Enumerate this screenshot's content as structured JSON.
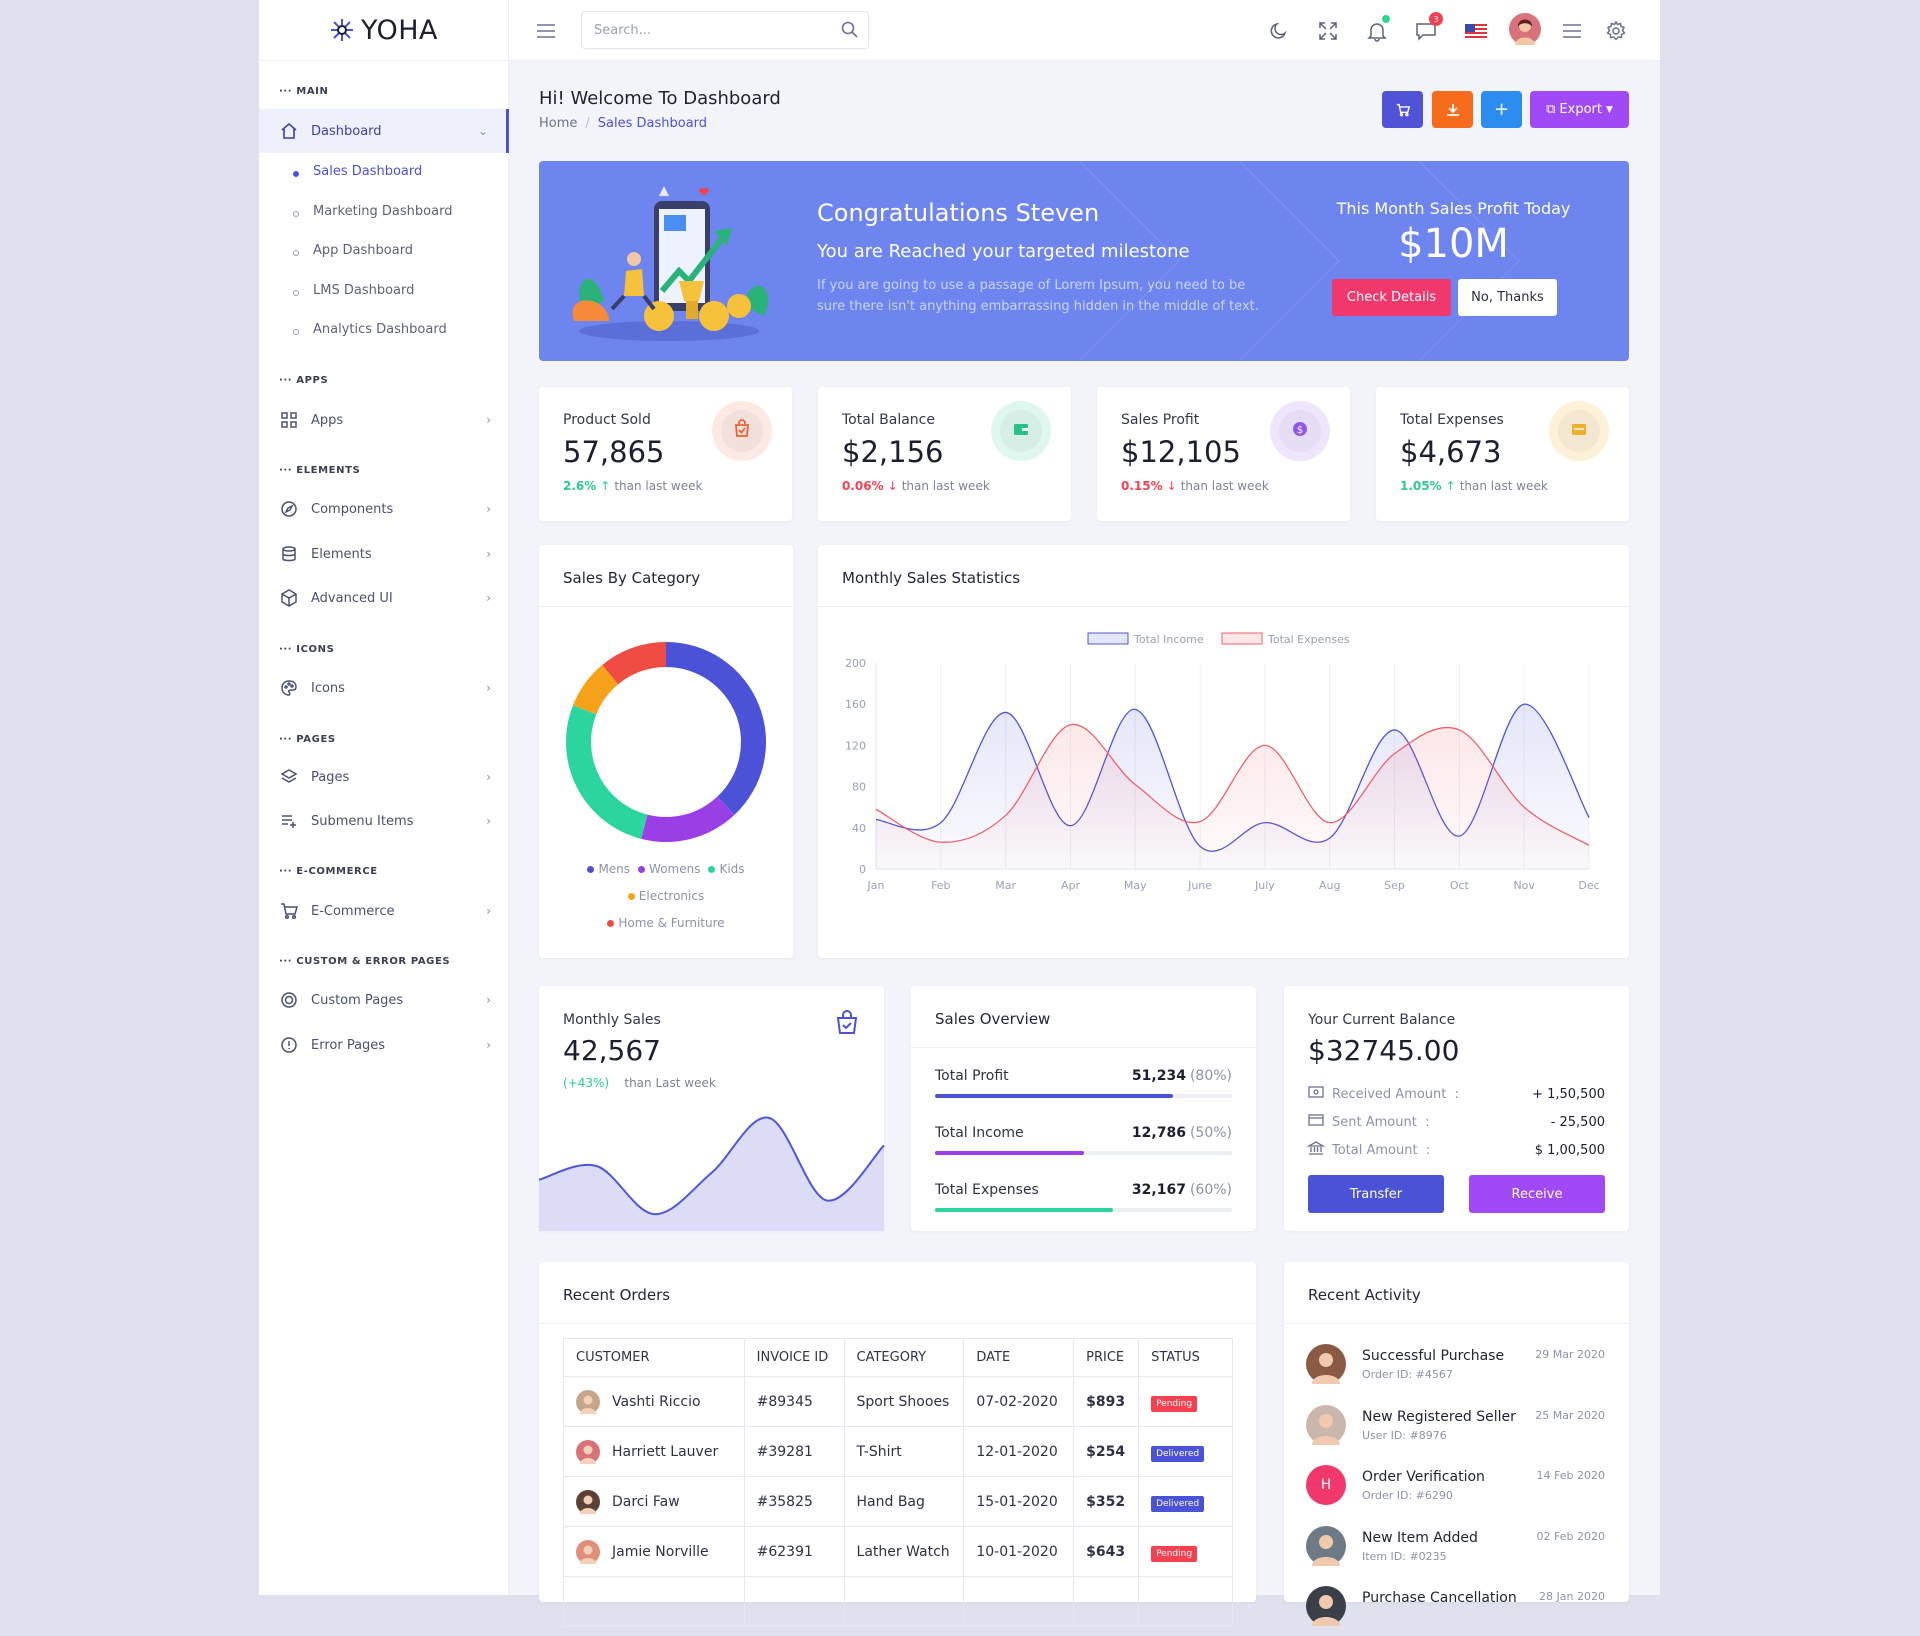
{
  "brand": {
    "name": "YOHA"
  },
  "sidebar": {
    "sections": [
      "MAIN",
      "APPS",
      "ELEMENTS",
      "ICONS",
      "PAGES",
      "E-COMMERCE",
      "CUSTOM & ERROR PAGES"
    ],
    "dashboard": "Dashboard",
    "sub_items": [
      "Sales Dashboard",
      "Marketing Dashboard",
      "App Dashboard",
      "LMS Dashboard",
      "Analytics Dashboard"
    ],
    "items": [
      "Apps",
      "Components",
      "Elements",
      "Advanced UI",
      "Icons",
      "Pages",
      "Submenu Items",
      "E-Commerce",
      "Custom Pages",
      "Error Pages"
    ]
  },
  "topbar": {
    "search_placeholder": "Search...",
    "message_badge": "3"
  },
  "header": {
    "title": "Hi! Welcome To Dashboard",
    "breadcrumb": [
      "Home",
      "Sales Dashboard"
    ],
    "export_label": "Export",
    "colors": {
      "cart": "#5053d6",
      "download": "#f76b1c",
      "add": "#2d8cf0",
      "export": "#a049f5"
    }
  },
  "banner": {
    "title": "Congratulations Steven",
    "subtitle": "You are Reached your targeted milestone",
    "text": "If you are going to use a passage of Lorem Ipsum, you need to be sure there isn't anything embarrassing hidden in the middle of text.",
    "profit_label": "This Month Sales Profit Today",
    "profit_value": "$10M",
    "details_btn": "Check Details",
    "thanks_btn": "No, Thanks"
  },
  "stats": [
    {
      "label": "Product Sold",
      "value": "57,865",
      "change": "2.6%",
      "dir": "up",
      "suffix": "than last week",
      "color": "#f4663d",
      "bg": "#fde9e3"
    },
    {
      "label": "Total Balance",
      "value": "$2,156",
      "change": "0.06%",
      "dir": "down",
      "suffix": "than last week",
      "color": "#2cc98f",
      "bg": "#dff8ef"
    },
    {
      "label": "Sales Profit",
      "value": "$12,105",
      "change": "0.15%",
      "dir": "down",
      "suffix": "than last week",
      "color": "#9a5cf2",
      "bg": "#efe6fd"
    },
    {
      "label": "Total Expenses",
      "value": "$4,673",
      "change": "1.05%",
      "dir": "up",
      "suffix": "than last week",
      "color": "#f7b731",
      "bg": "#fdf1da"
    }
  ],
  "sales_by_category": {
    "title": "Sales By Category"
  },
  "monthly_stats": {
    "title": "Monthly Sales Statistics"
  },
  "monthly_sales": {
    "label": "Monthly Sales",
    "value": "42,567",
    "change": "(+43%)",
    "suffix": "than Last week"
  },
  "overview": {
    "title": "Sales Overview",
    "rows": [
      {
        "name": "Total Profit",
        "value": "51,234",
        "pct": "(80%)",
        "fill": 0.8,
        "color": "#4b52d8"
      },
      {
        "name": "Total Income",
        "value": "12,786",
        "pct": "(50%)",
        "fill": 0.5,
        "color": "#9a3fe6"
      },
      {
        "name": "Total Expenses",
        "value": "32,167",
        "pct": "(60%)",
        "fill": 0.6,
        "color": "#2cd5a0"
      }
    ]
  },
  "balance": {
    "label": "Your Current Balance",
    "value": "$32745.00",
    "rows": [
      {
        "name": "Received Amount",
        "amount": "+ 1,50,500"
      },
      {
        "name": "Sent Amount",
        "amount": "- 25,500"
      },
      {
        "name": "Total Amount",
        "amount": "$ 1,00,500"
      }
    ],
    "transfer": "Transfer",
    "receive": "Receive"
  },
  "orders": {
    "title": "Recent Orders",
    "columns": [
      "CUSTOMER",
      "INVOICE ID",
      "CATEGORY",
      "DATE",
      "PRICE",
      "STATUS"
    ],
    "rows": [
      {
        "customer": "Vashti Riccio",
        "invoice": "#89345",
        "category": "Sport Shooes",
        "date": "07-02-2020",
        "price": "$893",
        "status": "Pending"
      },
      {
        "customer": "Harriett Lauver",
        "invoice": "#39281",
        "category": "T-Shirt",
        "date": "12-01-2020",
        "price": "$254",
        "status": "Delivered"
      },
      {
        "customer": "Darci Faw",
        "invoice": "#35825",
        "category": "Hand Bag",
        "date": "15-01-2020",
        "price": "$352",
        "status": "Delivered"
      },
      {
        "customer": "Jamie Norville",
        "invoice": "#62391",
        "category": "Lather Watch",
        "date": "10-01-2020",
        "price": "$643",
        "status": "Pending"
      }
    ]
  },
  "activity": {
    "title": "Recent Activity",
    "items": [
      {
        "title": "Successful Purchase",
        "sub": "Order ID: #4567",
        "date": "29 Mar 2020",
        "initial": ""
      },
      {
        "title": "New Registered Seller",
        "sub": "User ID: #8976",
        "date": "25 Mar 2020",
        "initial": ""
      },
      {
        "title": "Order Verification",
        "sub": "Order ID: #6290",
        "date": "14 Feb 2020",
        "initial": "H"
      },
      {
        "title": "New Item Added",
        "sub": "Item ID: #0235",
        "date": "02 Feb 2020",
        "initial": ""
      },
      {
        "title": "Purchase Cancellation",
        "sub": "",
        "date": "28 Jan 2020",
        "initial": ""
      }
    ]
  },
  "chart_data": [
    {
      "type": "pie",
      "categories": [
        "Mens",
        "Womens",
        "Kids",
        "Electronics",
        "Home & Furniture"
      ],
      "values": [
        38,
        16,
        27,
        8,
        11
      ],
      "colors": [
        "#4b52d8",
        "#9a3fe6",
        "#2cd5a0",
        "#f7a21b",
        "#ef4c43"
      ]
    },
    {
      "type": "area",
      "categories": [
        "Jan",
        "Feb",
        "Mar",
        "Apr",
        "May",
        "June",
        "July",
        "Aug",
        "Sep",
        "Oct",
        "Nov",
        "Dec"
      ],
      "ylim": [
        0,
        200
      ],
      "yticks": [
        0,
        40,
        80,
        120,
        160,
        200
      ],
      "series": [
        {
          "name": "Total Income",
          "values": [
            48,
            45,
            152,
            42,
            155,
            22,
            45,
            30,
            135,
            32,
            160,
            50
          ],
          "color": "#5056d8"
        },
        {
          "name": "Total Expenses",
          "values": [
            58,
            26,
            52,
            140,
            82,
            46,
            120,
            45,
            112,
            135,
            60,
            23
          ],
          "color": "#f0606b"
        }
      ]
    },
    {
      "type": "area",
      "values": [
        30,
        40,
        5,
        35,
        75,
        15,
        55
      ],
      "color": "#5056d8"
    }
  ]
}
